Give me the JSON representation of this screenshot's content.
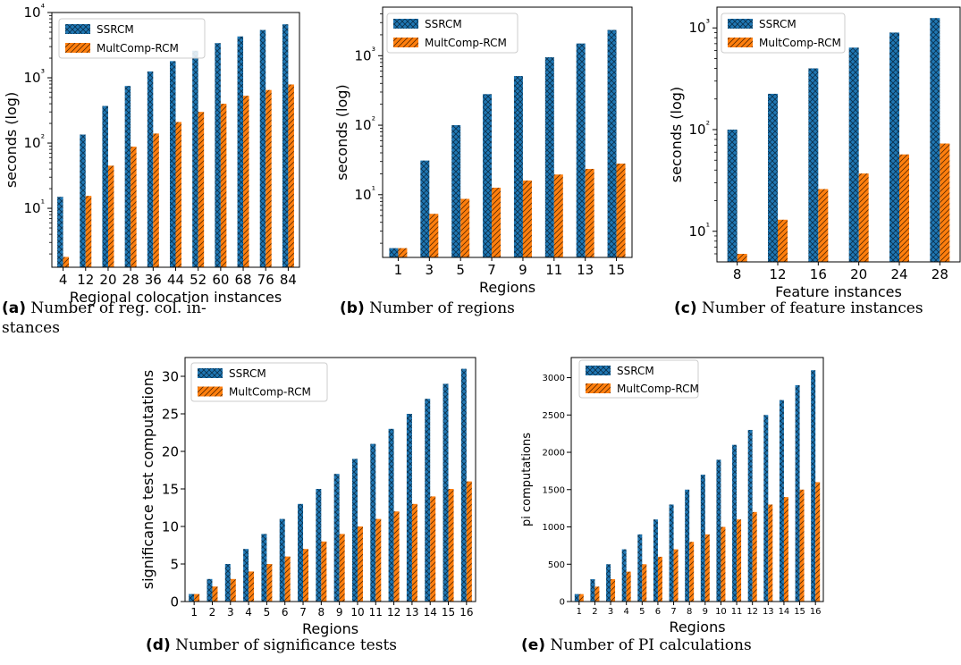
{
  "colors": {
    "ssrcm": "#1f77b4",
    "multcomp": "#ff7f0e"
  },
  "captions": [
    {
      "letter": "(a)",
      "text": "Number of reg. col. in-",
      "text2": "stances"
    },
    {
      "letter": "(b)",
      "text": "Number of regions"
    },
    {
      "letter": "(c)",
      "text": "Number of feature instances"
    },
    {
      "letter": "(d)",
      "text": "Number of significance tests"
    },
    {
      "letter": "(e)",
      "text": "Number of PI calculations"
    }
  ],
  "chart_data": [
    {
      "type": "bar",
      "scale": "log",
      "categories": [
        "4",
        "12",
        "20",
        "28",
        "36",
        "44",
        "52",
        "60",
        "68",
        "76",
        "84"
      ],
      "xlabel": "Regional colocation instances",
      "ylabel": "seconds (log)",
      "ylim": [
        1.25,
        10000
      ],
      "yticks": [
        10,
        100,
        1000,
        10000
      ],
      "yticklabels": [
        "10¹",
        "10²",
        "10³",
        "10⁴"
      ],
      "legend": "top-left",
      "series": [
        {
          "name": "SSRCM",
          "values": [
            15,
            135,
            370,
            750,
            1250,
            1800,
            2600,
            3400,
            4300,
            5400,
            6600
          ]
        },
        {
          "name": "MultComp-RCM",
          "values": [
            1.8,
            15.5,
            45,
            88,
            140,
            210,
            300,
            400,
            530,
            650,
            790
          ]
        }
      ]
    },
    {
      "type": "bar",
      "scale": "log",
      "categories": [
        "1",
        "3",
        "5",
        "7",
        "9",
        "11",
        "13",
        "15"
      ],
      "xlabel": "Regions",
      "ylabel": "seconds (log)",
      "ylim": [
        1.25,
        5000
      ],
      "yticks": [
        10,
        100,
        1000
      ],
      "yticklabels": [
        "10¹",
        "10²",
        "10³"
      ],
      "legend": "top-left",
      "series": [
        {
          "name": "SSRCM",
          "values": [
            1.7,
            31,
            100,
            280,
            510,
            950,
            1500,
            2350
          ]
        },
        {
          "name": "MultComp-RCM",
          "values": [
            1.7,
            5.3,
            8.7,
            12.6,
            16,
            19.5,
            23.5,
            28
          ]
        }
      ]
    },
    {
      "type": "bar",
      "scale": "log",
      "categories": [
        "8",
        "12",
        "16",
        "20",
        "24",
        "28"
      ],
      "xlabel": "Feature instances",
      "ylabel": "seconds (log)",
      "ylim": [
        5,
        1600
      ],
      "yticks": [
        10,
        100,
        1000
      ],
      "yticklabels": [
        "10¹",
        "10²",
        "10³"
      ],
      "legend": "top-left",
      "series": [
        {
          "name": "SSRCM",
          "values": [
            100,
            225,
            400,
            640,
            900,
            1250
          ]
        },
        {
          "name": "MultComp-RCM",
          "values": [
            6,
            13,
            26,
            37,
            57,
            73
          ]
        }
      ]
    },
    {
      "type": "bar",
      "scale": "linear",
      "categories": [
        "1",
        "2",
        "3",
        "4",
        "5",
        "6",
        "7",
        "8",
        "9",
        "10",
        "11",
        "12",
        "13",
        "14",
        "15",
        "16"
      ],
      "xlabel": "Regions",
      "ylabel": "significance test computations",
      "ylim": [
        0,
        32.5
      ],
      "yticks": [
        0,
        5,
        10,
        15,
        20,
        25,
        30
      ],
      "yticklabels": [
        "0",
        "5",
        "10",
        "15",
        "20",
        "25",
        "30"
      ],
      "legend": "top-left",
      "series": [
        {
          "name": "SSRCM",
          "values": [
            1,
            3,
            5,
            7,
            9,
            11,
            13,
            15,
            17,
            19,
            21,
            23,
            25,
            27,
            29,
            31
          ]
        },
        {
          "name": "MultComp-RCM",
          "values": [
            1,
            2,
            3,
            4,
            5,
            6,
            7,
            8,
            9,
            10,
            11,
            12,
            13,
            14,
            15,
            16
          ]
        }
      ]
    },
    {
      "type": "bar",
      "scale": "linear",
      "categories": [
        "1",
        "2",
        "3",
        "4",
        "5",
        "6",
        "7",
        "8",
        "9",
        "10",
        "11",
        "12",
        "13",
        "14",
        "15",
        "16"
      ],
      "xlabel": "Regions",
      "ylabel": "pi computations",
      "ylim": [
        0,
        3270
      ],
      "yticks": [
        0,
        500,
        1000,
        1500,
        2000,
        2500,
        3000
      ],
      "yticklabels": [
        "0",
        "500",
        "1000",
        "1500",
        "2000",
        "2500",
        "3000"
      ],
      "legend": "top-left",
      "series": [
        {
          "name": "SSRCM",
          "values": [
            100,
            300,
            500,
            700,
            900,
            1100,
            1300,
            1500,
            1700,
            1900,
            2100,
            2300,
            2500,
            2700,
            2900,
            3100
          ]
        },
        {
          "name": "MultComp-RCM",
          "values": [
            100,
            200,
            300,
            400,
            500,
            600,
            700,
            800,
            900,
            1000,
            1100,
            1200,
            1300,
            1400,
            1500,
            1600
          ]
        }
      ]
    }
  ]
}
